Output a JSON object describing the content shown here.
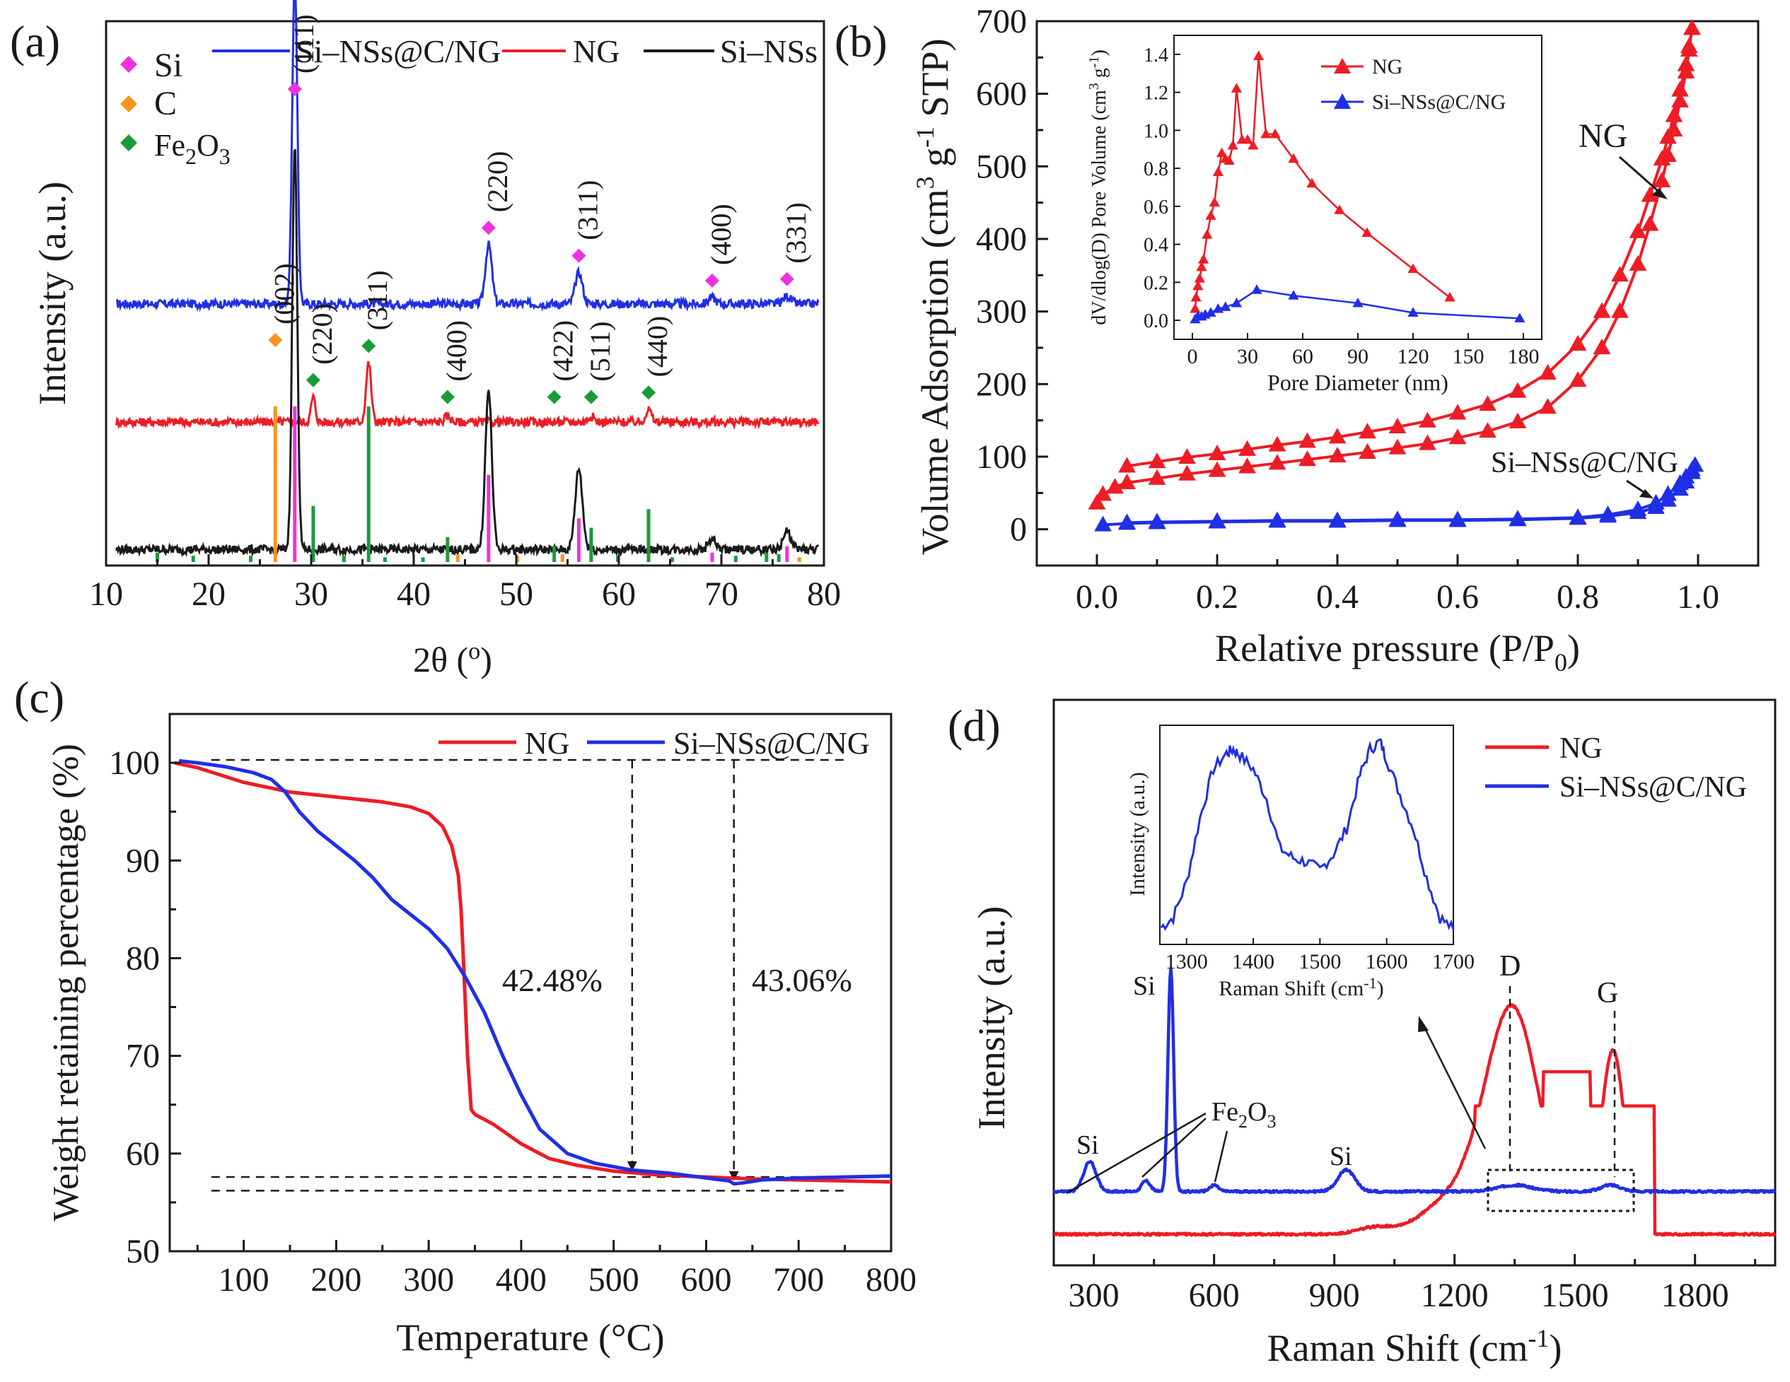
{
  "figure": {
    "colors": {
      "blue": "#1f2fe6",
      "red": "#ee1c25",
      "black": "#1a1a1a",
      "magenta": "#ee33dd",
      "orange": "#f7941d",
      "green": "#1a9b3a"
    }
  },
  "panels": {
    "a": {
      "label": "(a)",
      "xlabel": "2θ (°)",
      "ylabel": "Intensity (a.u.)"
    },
    "b": {
      "label": "(b)",
      "xlabel": "Relative pressure (P/P0)",
      "ylabel": "Volume Adsorption (cm3 g-1 STP)",
      "annotation_ng": "NG",
      "annotation_si": "Si-NSs@C/NG",
      "inset": {
        "xlabel": "Pore Diameter (nm)",
        "ylabel": "dV/dlog(D) Pore Volume (cm3 g-1)"
      }
    },
    "c": {
      "label": "(c)",
      "xlabel": "Temperature (°C)",
      "ylabel": "Weight retaining percentage (%)"
    },
    "d": {
      "label": "(d)",
      "xlabel": "Raman Shift (cm-1)",
      "ylabel": "Intensity (a.u.)",
      "inset": {
        "xlabel": "Raman Shift (cm-1)",
        "ylabel": "Intensity (a.u.)"
      }
    }
  },
  "chart_data": [
    {
      "id": "a",
      "type": "line",
      "title": "(a)",
      "xlabel": "2θ (°)",
      "ylabel": "Intensity (a.u.)",
      "xlim": [
        10,
        80
      ],
      "xticks": [
        10,
        20,
        30,
        40,
        50,
        60,
        70,
        80
      ],
      "legend": [
        "Si-NSs@C/NG",
        "NG",
        "Si-NSs"
      ],
      "marker_legend": [
        {
          "label": "Si",
          "color": "magenta"
        },
        {
          "label": "C",
          "color": "orange"
        },
        {
          "label": "Fe2O3",
          "color": "green"
        }
      ],
      "series": [
        {
          "name": "Si-NSs@C/NG",
          "color": "blue",
          "baseline": 8.3,
          "peaks": [
            [
              28.4,
              10.5,
              0.35
            ],
            [
              47.3,
              1.9,
              0.45
            ],
            [
              56.1,
              1.0,
              0.5
            ],
            [
              69.1,
              0.2,
              0.5
            ],
            [
              76.4,
              0.25,
              0.5
            ]
          ]
        },
        {
          "name": "NG",
          "color": "red",
          "baseline": 4.5,
          "peaks": [
            [
              30.2,
              0.8,
              0.3
            ],
            [
              35.6,
              1.9,
              0.35
            ],
            [
              43.3,
              0.2,
              0.4
            ],
            [
              57.3,
              0.2,
              0.4
            ],
            [
              62.9,
              0.4,
              0.4
            ]
          ]
        },
        {
          "name": "Si-NSs",
          "color": "black",
          "baseline": 0.4,
          "peaks": [
            [
              28.4,
              13.0,
              0.35
            ],
            [
              47.3,
              5.1,
              0.45
            ],
            [
              56.1,
              2.6,
              0.5
            ],
            [
              69.1,
              0.35,
              0.5
            ],
            [
              76.4,
              0.6,
              0.5
            ]
          ]
        }
      ],
      "peak_labels": [
        {
          "text": "(111)",
          "x": 28.4,
          "marker": "magenta",
          "series": "Si-NSs@C/NG"
        },
        {
          "text": "(220)",
          "x": 47.3,
          "marker": "magenta",
          "series": "Si-NSs@C/NG"
        },
        {
          "text": "(311)",
          "x": 56.1,
          "marker": "magenta",
          "series": "Si-NSs@C/NG"
        },
        {
          "text": "(400)",
          "x": 69.1,
          "marker": "magenta",
          "series": "Si-NSs@C/NG"
        },
        {
          "text": "(331)",
          "x": 76.4,
          "marker": "magenta",
          "series": "Si-NSs@C/NG"
        },
        {
          "text": "(002)",
          "x": 26.5,
          "marker": "orange",
          "series": "NG"
        },
        {
          "text": "(220)",
          "x": 30.2,
          "marker": "green",
          "series": "NG"
        },
        {
          "text": "(311)",
          "x": 35.6,
          "marker": "green",
          "series": "NG"
        },
        {
          "text": "(400)",
          "x": 43.3,
          "marker": "green",
          "series": "NG"
        },
        {
          "text": "(422)",
          "x": 53.7,
          "marker": "green",
          "series": "NG"
        },
        {
          "text": "(511)",
          "x": 57.3,
          "marker": "green",
          "series": "NG"
        },
        {
          "text": "(440)",
          "x": 62.9,
          "marker": "green",
          "series": "NG"
        }
      ],
      "reference_sticks": [
        {
          "x": 26.5,
          "h": 5.0,
          "color": "orange"
        },
        {
          "x": 28.4,
          "h": 5.0,
          "color": "magenta"
        },
        {
          "x": 30.2,
          "h": 1.8,
          "color": "green"
        },
        {
          "x": 35.6,
          "h": 5.0,
          "color": "green"
        },
        {
          "x": 43.3,
          "h": 0.8,
          "color": "green"
        },
        {
          "x": 47.3,
          "h": 2.8,
          "color": "magenta"
        },
        {
          "x": 53.7,
          "h": 0.5,
          "color": "green"
        },
        {
          "x": 56.1,
          "h": 1.4,
          "color": "magenta"
        },
        {
          "x": 57.3,
          "h": 1.1,
          "color": "green"
        },
        {
          "x": 62.9,
          "h": 1.7,
          "color": "green"
        },
        {
          "x": 69.1,
          "h": 0.3,
          "color": "magenta"
        },
        {
          "x": 76.4,
          "h": 0.5,
          "color": "magenta"
        },
        {
          "x": 15.0,
          "h": 0.3,
          "color": "green"
        },
        {
          "x": 18.5,
          "h": 0.2,
          "color": "green"
        },
        {
          "x": 24.1,
          "h": 0.2,
          "color": "green"
        },
        {
          "x": 33.2,
          "h": 0.2,
          "color": "green"
        },
        {
          "x": 37.2,
          "h": 0.15,
          "color": "green"
        },
        {
          "x": 40.9,
          "h": 0.15,
          "color": "green"
        },
        {
          "x": 44.3,
          "h": 0.25,
          "color": "orange"
        },
        {
          "x": 50.1,
          "h": 0.2,
          "color": "orange"
        },
        {
          "x": 54.5,
          "h": 0.25,
          "color": "orange"
        },
        {
          "x": 59.9,
          "h": 0.2,
          "color": "green"
        },
        {
          "x": 65.2,
          "h": 0.15,
          "color": "green"
        },
        {
          "x": 71.4,
          "h": 0.2,
          "color": "green"
        },
        {
          "x": 74.4,
          "h": 0.3,
          "color": "green"
        },
        {
          "x": 75.6,
          "h": 0.25,
          "color": "green"
        },
        {
          "x": 77.6,
          "h": 0.15,
          "color": "orange"
        }
      ]
    },
    {
      "id": "b",
      "type": "line",
      "title": "(b)",
      "xlabel": "Relative pressure (P/P0)",
      "ylabel": "Volume Adsorption (cm3 g-1 STP)",
      "xlim": [
        -0.1,
        1.1
      ],
      "ylim": [
        -50,
        700
      ],
      "xticks": [
        "0.0",
        "0.2",
        "0.4",
        "0.6",
        "0.8",
        "1.0"
      ],
      "yticks": [
        "0",
        "100",
        "200",
        "300",
        "400",
        "500",
        "600",
        "700"
      ],
      "series": [
        {
          "name": "NG",
          "color": "red",
          "marker": "triangle",
          "x": [
            0.0,
            0.01,
            0.03,
            0.05,
            0.1,
            0.15,
            0.2,
            0.25,
            0.3,
            0.35,
            0.4,
            0.45,
            0.5,
            0.55,
            0.6,
            0.65,
            0.7,
            0.75,
            0.8,
            0.84,
            0.87,
            0.9,
            0.92,
            0.94,
            0.95,
            0.96,
            0.97,
            0.98,
            0.985,
            0.99
          ],
          "adsorption": [
            36,
            48,
            58,
            64,
            70,
            76,
            81,
            86,
            91,
            96,
            101,
            106,
            112,
            118,
            126,
            135,
            148,
            168,
            205,
            250,
            300,
            365,
            420,
            480,
            515,
            550,
            590,
            630,
            660,
            690
          ],
          "desorption": [
            null,
            null,
            null,
            87,
            93,
            99,
            104,
            110,
            116,
            121,
            127,
            134,
            141,
            149,
            160,
            172,
            190,
            215,
            255,
            300,
            350,
            410,
            460,
            510,
            540,
            570,
            605,
            640,
            665,
            690
          ]
        },
        {
          "name": "Si-NSs@C/NG",
          "color": "blue",
          "marker": "triangle",
          "x": [
            0.01,
            0.05,
            0.1,
            0.2,
            0.3,
            0.4,
            0.5,
            0.6,
            0.7,
            0.8,
            0.85,
            0.9,
            0.93,
            0.95,
            0.97,
            0.98,
            0.99,
            0.995
          ],
          "adsorption": [
            6,
            8,
            9,
            10,
            11,
            11,
            12,
            12,
            13,
            15,
            18,
            23,
            30,
            40,
            55,
            65,
            78,
            88
          ],
          "desorption": [
            null,
            9,
            10,
            11,
            12,
            12,
            13,
            13,
            14,
            16,
            20,
            27,
            36,
            48,
            63,
            72,
            82,
            88
          ]
        }
      ],
      "inset": {
        "xlabel": "Pore Diameter (nm)",
        "ylabel": "dV/dlog(D) Pore Volume (cm3 g-1)",
        "xlim": [
          -10,
          190
        ],
        "ylim": [
          -0.1,
          1.5
        ],
        "xticks": [
          "0",
          "30",
          "60",
          "90",
          "120",
          "150",
          "180"
        ],
        "yticks": [
          "0.0",
          "0.2",
          "0.4",
          "0.6",
          "0.8",
          "1.0",
          "1.2",
          "1.4"
        ],
        "series": [
          {
            "name": "NG",
            "color": "red",
            "x": [
              1.5,
              2,
              3,
              4,
              5,
              6,
              8,
              10,
              12,
              14,
              16,
              18,
              20,
              22,
              24,
              27,
              30,
              33,
              36,
              40,
              45,
              55,
              65,
              80,
              95,
              120,
              140
            ],
            "y": [
              0.06,
              0.12,
              0.18,
              0.22,
              0.28,
              0.32,
              0.45,
              0.55,
              0.62,
              0.78,
              0.88,
              0.85,
              0.84,
              0.92,
              1.22,
              0.95,
              0.95,
              0.92,
              1.39,
              0.98,
              0.98,
              0.85,
              0.72,
              0.58,
              0.46,
              0.27,
              0.12
            ]
          },
          {
            "name": "Si-NSs@C/NG",
            "color": "blue",
            "x": [
              1.5,
              3,
              5,
              7,
              10,
              14,
              18,
              24,
              35,
              55,
              90,
              120,
              178
            ],
            "y": [
              0.005,
              0.02,
              0.02,
              0.03,
              0.04,
              0.06,
              0.07,
              0.09,
              0.16,
              0.13,
              0.09,
              0.04,
              0.01
            ]
          }
        ]
      }
    },
    {
      "id": "c",
      "type": "line",
      "title": "(c)",
      "xlabel": "Temperature (°C)",
      "ylabel": "Weight retaining percentage (%)",
      "xlim": [
        20,
        800
      ],
      "ylim": [
        50,
        105
      ],
      "xticks": [
        "100",
        "200",
        "300",
        "400",
        "500",
        "600",
        "700",
        "800"
      ],
      "yticks": [
        "50",
        "60",
        "70",
        "80",
        "90",
        "100"
      ],
      "annotations": [
        "42.48%",
        "43.06%"
      ],
      "series": [
        {
          "name": "NG",
          "color": "red",
          "x": [
            25,
            50,
            100,
            150,
            200,
            250,
            280,
            300,
            315,
            325,
            332,
            335,
            338,
            342,
            346,
            350,
            370,
            400,
            430,
            460,
            500,
            550,
            600,
            650,
            700,
            750,
            800
          ],
          "y": [
            100,
            99.5,
            98.0,
            97.0,
            96.5,
            96.0,
            95.5,
            94.8,
            93.5,
            91.5,
            88.5,
            85,
            79,
            70,
            64.5,
            64.0,
            63.0,
            61.0,
            59.5,
            58.8,
            58.2,
            57.8,
            57.6,
            57.4,
            57.3,
            57.2,
            57.1
          ]
        },
        {
          "name": "Si-NSs@C/NG",
          "color": "blue",
          "x": [
            30,
            50,
            80,
            110,
            130,
            145,
            160,
            180,
            200,
            220,
            240,
            260,
            280,
            300,
            320,
            340,
            360,
            380,
            400,
            420,
            450,
            480,
            520,
            560,
            600,
            625,
            630,
            640,
            660,
            700,
            750,
            800
          ],
          "y": [
            100.2,
            100,
            99.6,
            99.0,
            98.3,
            97.0,
            95.0,
            93.0,
            91.5,
            90.0,
            88.2,
            86.0,
            84.5,
            83.0,
            81.0,
            78.0,
            74.5,
            70.0,
            66.0,
            62.5,
            60.0,
            59.0,
            58.3,
            58.0,
            57.5,
            57.2,
            56.9,
            57.0,
            57.3,
            57.5,
            57.6,
            57.7
          ]
        }
      ]
    },
    {
      "id": "d",
      "type": "line",
      "title": "(d)",
      "xlabel": "Raman Shift (cm-1)",
      "ylabel": "Intensity (a.u.)",
      "xlim": [
        200,
        2000
      ],
      "xticks": [
        "300",
        "600",
        "900",
        "1200",
        "1500",
        "1800"
      ],
      "annotations": [
        "Si",
        "Si",
        "Si",
        "Fe2O3",
        "D",
        "G"
      ],
      "series": [
        {
          "name": "NG",
          "color": "red",
          "baseline": 0.0,
          "peaks": [
            [
              1345,
              5.2,
              95
            ],
            [
              1595,
              4.3,
              42
            ],
            [
              1200,
              0.8,
              110
            ],
            [
              1000,
              0.15,
              60
            ]
          ]
        },
        {
          "name": "Si-NSs@C/NG",
          "color": "blue",
          "baseline": 1.0,
          "peaks": [
            [
              492,
              5.2,
              10
            ],
            [
              290,
              0.7,
              22
            ],
            [
              930,
              0.5,
              30
            ],
            [
              430,
              0.25,
              15
            ],
            [
              600,
              0.15,
              15
            ],
            [
              1350,
              0.15,
              60
            ],
            [
              1590,
              0.15,
              35
            ]
          ]
        }
      ],
      "inset": {
        "xlabel": "Raman Shift (cm-1)",
        "ylabel": "Intensity (a.u.)",
        "xlim": [
          1260,
          1700
        ],
        "xticks": [
          "1300",
          "1400",
          "1500",
          "1600",
          "1700"
        ],
        "series": [
          {
            "name": "Si-NSs@C/NG",
            "color": "blue",
            "x": [
              1262,
              1280,
              1300,
              1320,
              1340,
              1360,
              1370,
              1380,
              1400,
              1420,
              1440,
              1460,
              1480,
              1500,
              1520,
              1540,
              1560,
              1575,
              1590,
              1600,
              1620,
              1640,
              1660,
              1680,
              1700
            ],
            "y": [
              0.05,
              0.1,
              0.28,
              0.6,
              0.85,
              0.93,
              0.95,
              0.92,
              0.85,
              0.7,
              0.45,
              0.4,
              0.38,
              0.34,
              0.42,
              0.55,
              0.82,
              0.95,
              0.99,
              0.9,
              0.72,
              0.55,
              0.3,
              0.1,
              0.04
            ]
          }
        ]
      }
    }
  ]
}
